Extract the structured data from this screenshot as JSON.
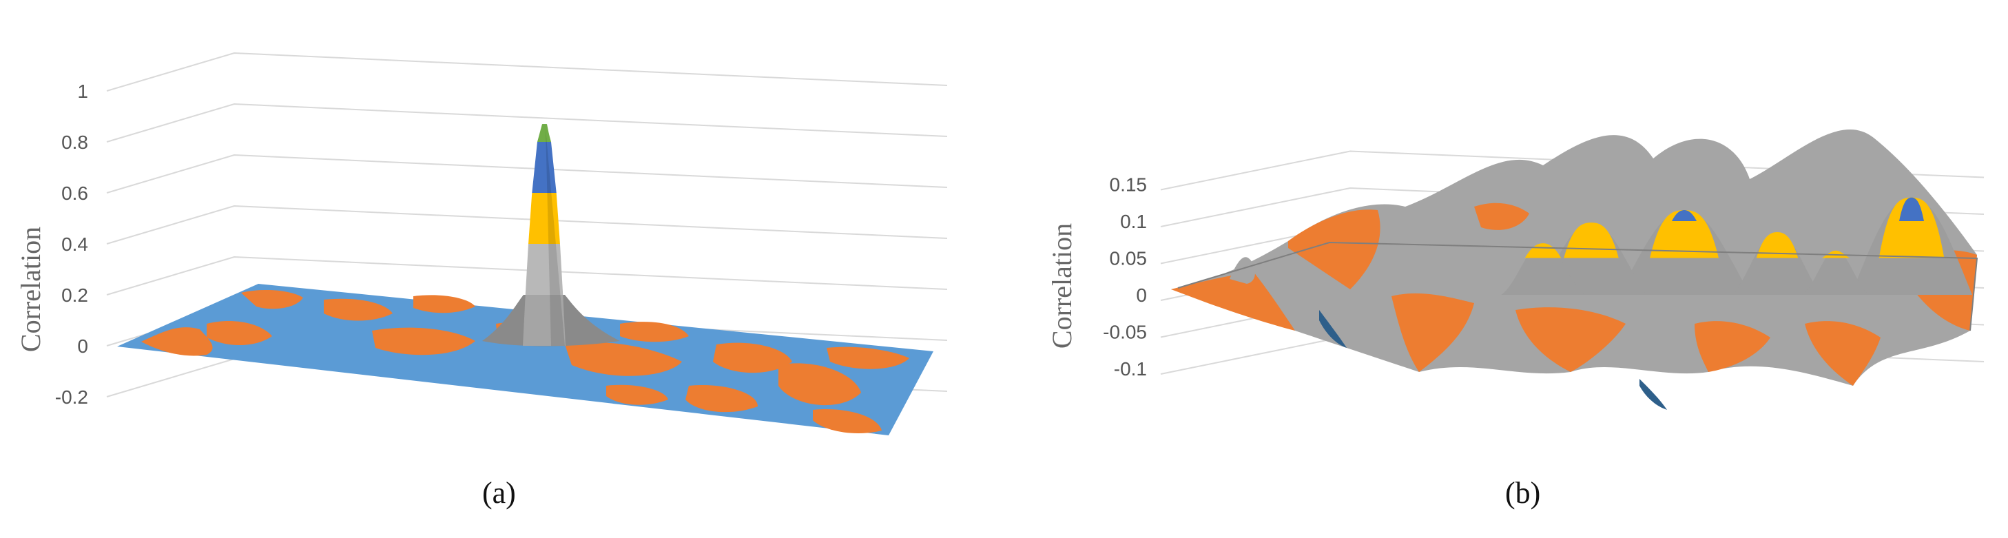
{
  "chart_data": [
    {
      "type": "surface",
      "caption": "(a)",
      "ylabel": "Correlation",
      "yticks": [
        "1",
        "0.8",
        "0.6",
        "0.4",
        "0.2",
        "0",
        "-0.2"
      ],
      "ylim": [
        -0.2,
        1
      ],
      "grid": true,
      "peak_value": 0.87,
      "baseline_value": 0,
      "colors": {
        "band_neg": "#ed7d31",
        "band_0": "#5b9bd5",
        "band_1": "#a5a5a5",
        "band_2": "#ffc000",
        "band_3": "#4472c4",
        "band_4": "#70ad47"
      }
    },
    {
      "type": "surface",
      "caption": "(b)",
      "ylabel": "Correlation",
      "yticks": [
        "0.15",
        "0.1",
        "0.05",
        "0",
        "-0.05",
        "-0.1"
      ],
      "ylim": [
        -0.1,
        0.15
      ],
      "grid": true,
      "peak_values": [
        0.132,
        0.115,
        0.098,
        0.085,
        0.07,
        0.06
      ],
      "trough_values": [
        -0.05,
        -0.06
      ],
      "colors": {
        "band_neg2": "#2e5f8a",
        "band_neg": "#ed7d31",
        "band_0": "#a5a5a5",
        "band_1": "#ffc000",
        "band_2": "#4472c4"
      }
    }
  ]
}
